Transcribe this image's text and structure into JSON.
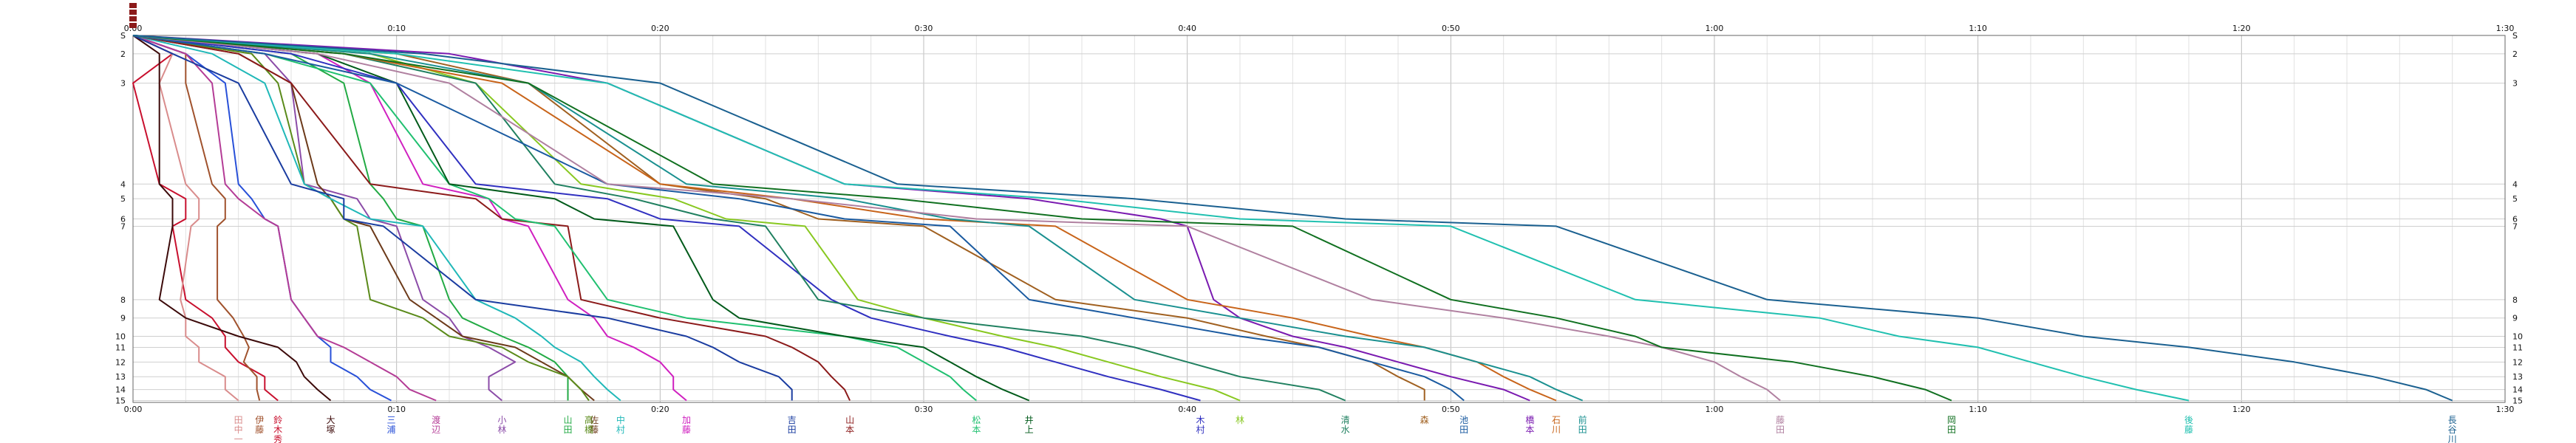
{
  "chart_data": {
    "type": "line",
    "title": "",
    "xlabel": "",
    "ylabel": "",
    "x_unit": "minutes",
    "xlim": [
      0,
      90
    ],
    "x_ticks": [
      {
        "label": "0:00",
        "value": 0
      },
      {
        "label": "0:10",
        "value": 10
      },
      {
        "label": "0:20",
        "value": 20
      },
      {
        "label": "0:30",
        "value": 30
      },
      {
        "label": "0:40",
        "value": 40
      },
      {
        "label": "0:50",
        "value": 50
      },
      {
        "label": "1:00",
        "value": 60
      },
      {
        "label": "1:10",
        "value": 70
      },
      {
        "label": "1:20",
        "value": 80
      },
      {
        "label": "1:30",
        "value": 90
      }
    ],
    "checkpoints": [
      "S",
      "2",
      "3",
      "4",
      "5",
      "6",
      "7",
      "8",
      "9",
      "10",
      "11",
      "12",
      "13",
      "14",
      "15"
    ],
    "grid": true,
    "legend": "runner names below x-axis",
    "top_marker_color": "#8b1a1a",
    "series": [
      {
        "name": "鈴木秀",
        "color": "#c8102e",
        "x": [
          0,
          1.5,
          0,
          1,
          2,
          2,
          1.5,
          2,
          3,
          3.5,
          3.5,
          4,
          5,
          5,
          5.5
        ]
      },
      {
        "name": "田中一",
        "color": "#d98c8c",
        "x": [
          0,
          1.5,
          1,
          2,
          2.5,
          2.5,
          2.2,
          1.8,
          2,
          2,
          2.5,
          2.5,
          3.5,
          3.5,
          4
        ]
      },
      {
        "name": "伊藤",
        "color": "#a0522d",
        "x": [
          0,
          2,
          2,
          3,
          3.5,
          3.5,
          3.2,
          3.2,
          3.8,
          4.2,
          4.4,
          4.2,
          4.7,
          4.7,
          4.8
        ]
      },
      {
        "name": "大塚",
        "color": "#3c0a0a",
        "x": [
          0,
          1,
          1,
          1,
          1.5,
          1.5,
          1.5,
          1,
          2,
          4,
          5.5,
          6.2,
          6.5,
          7,
          7.5
        ]
      },
      {
        "name": "三浦",
        "color": "#2850d8",
        "x": [
          0,
          2,
          3.5,
          4,
          4.5,
          5,
          5.5,
          6,
          6.5,
          7,
          7.5,
          7.5,
          8.5,
          9,
          9.8
        ]
      },
      {
        "name": "渡辺",
        "color": "#b43c96",
        "x": [
          0,
          2,
          3,
          3.5,
          4,
          5,
          5.5,
          6,
          6.5,
          7,
          8,
          9,
          10,
          10.5,
          11.5
        ]
      },
      {
        "name": "小林",
        "color": "#8b4ca8",
        "x": [
          0,
          5,
          6,
          6.5,
          8.5,
          9,
          10,
          11,
          12,
          12.5,
          13.5,
          14.5,
          13.5,
          13.5,
          14
        ]
      },
      {
        "name": "山田",
        "color": "#22aa44",
        "x": [
          0,
          6,
          8,
          9,
          9.5,
          10,
          11,
          12,
          12.5,
          14,
          15,
          16,
          16.5,
          16.5,
          16.5
        ]
      },
      {
        "name": "佐藤",
        "color": "#6c3a1a",
        "x": [
          0,
          4,
          6,
          7,
          7.5,
          8,
          9,
          10.5,
          11.5,
          12.5,
          14.5,
          15.5,
          16.5,
          17,
          17.5
        ]
      },
      {
        "name": "高橋",
        "color": "#5a8a1a",
        "x": [
          0,
          4.5,
          5.5,
          6.5,
          7.5,
          8,
          8.5,
          9,
          11,
          12,
          14,
          15,
          16.5,
          17,
          17.3
        ]
      },
      {
        "name": "中村",
        "color": "#20b8b8",
        "x": [
          0,
          3,
          5,
          6.5,
          7.5,
          9,
          11,
          13,
          14.5,
          15.5,
          16,
          17,
          17.5,
          18,
          18.5
        ]
      },
      {
        "name": "加藤",
        "color": "#d020c0",
        "x": [
          0,
          7,
          9,
          11,
          13.5,
          14,
          15,
          16.5,
          17.5,
          18,
          19,
          20,
          20.5,
          20.5,
          21
        ]
      },
      {
        "name": "吉田",
        "color": "#1a3ca0",
        "x": [
          0,
          1.5,
          4,
          6,
          8,
          8,
          9.5,
          13,
          18,
          21,
          22,
          23,
          24.5,
          25,
          25
        ]
      },
      {
        "name": "山本",
        "color": "#8b1a1a",
        "x": [
          0,
          4,
          6,
          9,
          13,
          14,
          16.5,
          17,
          20,
          24,
          25,
          26,
          26.5,
          27,
          27.2
        ]
      },
      {
        "name": "松本",
        "color": "#20c070",
        "x": [
          0,
          5,
          9,
          12,
          13.5,
          14.5,
          16,
          18,
          21,
          27,
          29,
          30,
          31,
          31.5,
          32
        ]
      },
      {
        "name": "井上",
        "color": "#005a1a",
        "x": [
          0,
          7,
          10,
          12,
          16,
          17.5,
          20.5,
          22,
          23,
          27,
          30,
          31,
          32,
          33,
          34
        ]
      },
      {
        "name": "木村",
        "color": "#3030c0",
        "x": [
          0,
          6,
          10,
          13,
          18,
          20,
          23,
          26.5,
          28,
          31,
          33,
          35,
          37,
          39,
          40.5
        ]
      },
      {
        "name": "林",
        "color": "#88c820",
        "x": [
          0,
          9,
          13,
          17,
          20.5,
          22.5,
          25.5,
          27.5,
          30,
          33,
          35,
          37,
          39,
          41,
          42
        ]
      },
      {
        "name": "清水",
        "color": "#208060",
        "x": [
          0,
          8,
          13,
          16,
          19,
          22,
          24,
          26,
          30,
          36,
          38,
          40,
          42,
          45,
          46
        ]
      },
      {
        "name": "森",
        "color": "#a06020",
        "x": [
          0,
          10,
          15,
          20,
          24,
          26,
          30,
          35,
          40,
          43,
          45,
          47,
          48,
          49,
          49
        ]
      },
      {
        "name": "池田",
        "color": "#1a5aa0",
        "x": [
          0,
          5,
          10,
          18,
          23,
          27,
          31,
          34,
          38,
          42,
          45,
          47,
          49,
          50,
          50.5
        ]
      },
      {
        "name": "橋本",
        "color": "#7a1ab0",
        "x": [
          0,
          12,
          18,
          27,
          34,
          39,
          40,
          41,
          42,
          44,
          46,
          48,
          50,
          52,
          53
        ]
      },
      {
        "name": "石川",
        "color": "#c8641a",
        "x": [
          0,
          8,
          14,
          20,
          25,
          30,
          35,
          40,
          44,
          47,
          49,
          51,
          52,
          53,
          54
        ]
      },
      {
        "name": "前田",
        "color": "#1a9090",
        "x": [
          0,
          9,
          15,
          21,
          27,
          31,
          34,
          38,
          42,
          46,
          49,
          51,
          53,
          54,
          55
        ]
      },
      {
        "name": "藤田",
        "color": "#b080a0",
        "x": [
          0,
          7,
          12,
          18,
          25,
          32,
          40,
          47,
          52,
          56,
          58,
          60,
          61,
          62,
          62.5
        ]
      },
      {
        "name": "岡田",
        "color": "#107020",
        "x": [
          0,
          8,
          15,
          22,
          29,
          36,
          44,
          50,
          54,
          57,
          58,
          63,
          66,
          68,
          69
        ]
      },
      {
        "name": "後藤",
        "color": "#20c0b0",
        "x": [
          0,
          10,
          18,
          27,
          35,
          42,
          50,
          57,
          64,
          67,
          70,
          72,
          74,
          76,
          78
        ]
      },
      {
        "name": "長谷川",
        "color": "#1a6090",
        "x": [
          0,
          11,
          20,
          29,
          38,
          46,
          54,
          62,
          70,
          74,
          78,
          82,
          85,
          87,
          88
        ]
      }
    ]
  }
}
